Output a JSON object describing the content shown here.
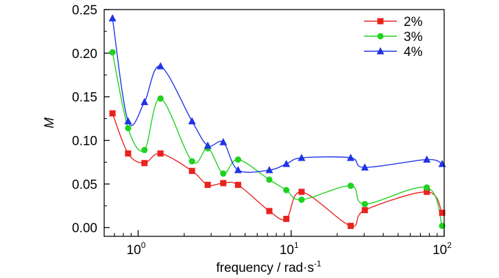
{
  "chart_data": {
    "type": "line",
    "xlabel": "frequency / rad·s",
    "xlabel_superscript": "-1",
    "ylabel": "M",
    "xscale": "log",
    "xlim": [
      0.6,
      100
    ],
    "ylim": [
      -0.01,
      0.25
    ],
    "x_ticks": [
      {
        "base": "10",
        "exp": "0",
        "value": 1
      },
      {
        "base": "10",
        "exp": "1",
        "value": 10
      },
      {
        "base": "10",
        "exp": "2",
        "value": 100
      }
    ],
    "y_ticks": [
      {
        "label": "0.00",
        "value": 0.0
      },
      {
        "label": "0.05",
        "value": 0.05
      },
      {
        "label": "0.10",
        "value": 0.1
      },
      {
        "label": "0.15",
        "value": 0.15
      },
      {
        "label": "0.20",
        "value": 0.2
      },
      {
        "label": "0.25",
        "value": 0.25
      }
    ],
    "legend_position": "top-right",
    "grid": false,
    "series": [
      {
        "name": "2%",
        "color": "#e8231e",
        "marker": "square",
        "x": [
          0.68,
          0.86,
          1.1,
          1.4,
          2.25,
          2.85,
          3.6,
          4.5,
          7.2,
          9.3,
          11.7,
          24.5,
          30.3,
          77.0,
          97.0
        ],
        "y": [
          0.131,
          0.085,
          0.074,
          0.085,
          0.065,
          0.049,
          0.051,
          0.049,
          0.019,
          0.01,
          0.041,
          0.002,
          0.02,
          0.041,
          0.017
        ]
      },
      {
        "name": "3%",
        "color": "#1fd21f",
        "marker": "circle",
        "x": [
          0.68,
          0.86,
          1.1,
          1.4,
          2.25,
          2.85,
          3.6,
          4.5,
          7.2,
          9.3,
          11.7,
          24.5,
          30.3,
          77.0,
          97.0
        ],
        "y": [
          0.201,
          0.114,
          0.089,
          0.148,
          0.076,
          0.091,
          0.062,
          0.078,
          0.055,
          0.043,
          0.032,
          0.048,
          0.027,
          0.046,
          0.002
        ]
      },
      {
        "name": "4%",
        "color": "#1f33e6",
        "marker": "triangle",
        "x": [
          0.68,
          0.86,
          1.1,
          1.4,
          2.25,
          2.85,
          3.6,
          4.5,
          7.2,
          9.3,
          11.7,
          24.5,
          30.3,
          77.0,
          97.0
        ],
        "y": [
          0.24,
          0.122,
          0.144,
          0.185,
          0.122,
          0.094,
          0.098,
          0.066,
          0.066,
          0.073,
          0.08,
          0.08,
          0.069,
          0.078,
          0.073
        ]
      }
    ]
  }
}
